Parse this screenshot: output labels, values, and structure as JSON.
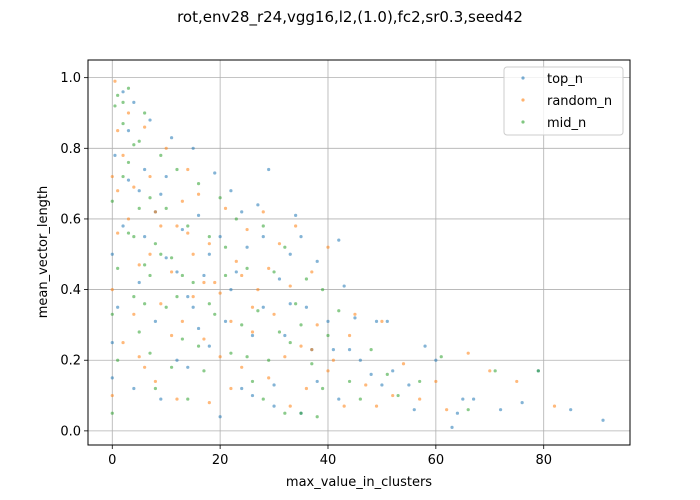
{
  "chart_data": {
    "type": "scatter",
    "title": "rot,env28_r24,vgg16,l2,(1.0),fc2,sr0.3,seed42",
    "xlabel": "max_value_in_clusters",
    "ylabel": "mean_vector_length",
    "xlim": [
      -4.5,
      96
    ],
    "ylim": [
      -0.04,
      1.05
    ],
    "xticks": [
      0,
      20,
      40,
      60,
      80
    ],
    "yticks": [
      0.0,
      0.2,
      0.4,
      0.6,
      0.8,
      1.0
    ],
    "xtick_labels": [
      "0",
      "20",
      "40",
      "60",
      "80"
    ],
    "ytick_labels": [
      "0.0",
      "0.2",
      "0.4",
      "0.6",
      "0.8",
      "1.0"
    ],
    "grid": true,
    "legend_position": "top-right",
    "series": [
      {
        "name": "top_n",
        "color": "#1f77b4",
        "points": [
          [
            91,
            0.03
          ],
          [
            85,
            0.06
          ],
          [
            79,
            0.17
          ],
          [
            76,
            0.08
          ],
          [
            72,
            0.06
          ],
          [
            67,
            0.09
          ],
          [
            65,
            0.09
          ],
          [
            64,
            0.05
          ],
          [
            63,
            0.01
          ],
          [
            60,
            0.2
          ],
          [
            58,
            0.24
          ],
          [
            56,
            0.06
          ],
          [
            55,
            0.13
          ],
          [
            52,
            0.17
          ],
          [
            51,
            0.31
          ],
          [
            50,
            0.13
          ],
          [
            49,
            0.31
          ],
          [
            48,
            0.16
          ],
          [
            45,
            0.32
          ],
          [
            44,
            0.23
          ],
          [
            43,
            0.41
          ],
          [
            42,
            0.54
          ],
          [
            41,
            0.23
          ],
          [
            40,
            0.31
          ],
          [
            38,
            0.48
          ],
          [
            37,
            0.23
          ],
          [
            36,
            0.35
          ],
          [
            35,
            0.55
          ],
          [
            34,
            0.61
          ],
          [
            33,
            0.5
          ],
          [
            32,
            0.27
          ],
          [
            31,
            0.43
          ],
          [
            30,
            0.13
          ],
          [
            29,
            0.74
          ],
          [
            28,
            0.35
          ],
          [
            27,
            0.64
          ],
          [
            26,
            0.27
          ],
          [
            25,
            0.52
          ],
          [
            24,
            0.12
          ],
          [
            23,
            0.45
          ],
          [
            22,
            0.68
          ],
          [
            21,
            0.31
          ],
          [
            20,
            0.55
          ],
          [
            19,
            0.73
          ],
          [
            18,
            0.24
          ],
          [
            17,
            0.44
          ],
          [
            16,
            0.61
          ],
          [
            15,
            0.8
          ],
          [
            14,
            0.38
          ],
          [
            13,
            0.57
          ],
          [
            12,
            0.2
          ],
          [
            11,
            0.83
          ],
          [
            10,
            0.49
          ],
          [
            9,
            0.67
          ],
          [
            8,
            0.31
          ],
          [
            7,
            0.88
          ],
          [
            6,
            0.55
          ],
          [
            5,
            0.42
          ],
          [
            4,
            0.93
          ],
          [
            3,
            0.71
          ],
          [
            2,
            0.58
          ],
          [
            1,
            0.35
          ],
          [
            0.5,
            0.78
          ],
          [
            0,
            0.5
          ],
          [
            0,
            0.25
          ],
          [
            0,
            0.15
          ],
          [
            12,
            0.45
          ],
          [
            15,
            0.35
          ],
          [
            18,
            0.5
          ],
          [
            22,
            0.4
          ],
          [
            26,
            0.1
          ],
          [
            30,
            0.07
          ],
          [
            35,
            0.05
          ],
          [
            42,
            0.09
          ],
          [
            46,
            0.2
          ],
          [
            8,
            0.62
          ],
          [
            6,
            0.74
          ],
          [
            3,
            0.85
          ],
          [
            10,
            0.72
          ],
          [
            14,
            0.18
          ],
          [
            20,
            0.04
          ],
          [
            24,
            0.62
          ],
          [
            28,
            0.55
          ],
          [
            33,
            0.36
          ],
          [
            38,
            0.14
          ],
          [
            2,
            0.96
          ],
          [
            4,
            0.12
          ],
          [
            5,
            0.68
          ],
          [
            9,
            0.09
          ],
          [
            16,
            0.29
          ]
        ]
      },
      {
        "name": "random_n",
        "color": "#ff7f0e",
        "points": [
          [
            82,
            0.07
          ],
          [
            75,
            0.14
          ],
          [
            70,
            0.17
          ],
          [
            66,
            0.22
          ],
          [
            62,
            0.06
          ],
          [
            60,
            0.14
          ],
          [
            57,
            0.09
          ],
          [
            54,
            0.19
          ],
          [
            52,
            0.1
          ],
          [
            50,
            0.31
          ],
          [
            47,
            0.13
          ],
          [
            45,
            0.33
          ],
          [
            43,
            0.07
          ],
          [
            41,
            0.2
          ],
          [
            40,
            0.52
          ],
          [
            38,
            0.3
          ],
          [
            37,
            0.45
          ],
          [
            36,
            0.12
          ],
          [
            35,
            0.24
          ],
          [
            34,
            0.58
          ],
          [
            33,
            0.41
          ],
          [
            32,
            0.21
          ],
          [
            31,
            0.53
          ],
          [
            30,
            0.33
          ],
          [
            29,
            0.15
          ],
          [
            28,
            0.62
          ],
          [
            27,
            0.4
          ],
          [
            26,
            0.28
          ],
          [
            25,
            0.57
          ],
          [
            24,
            0.18
          ],
          [
            23,
            0.48
          ],
          [
            22,
            0.31
          ],
          [
            21,
            0.63
          ],
          [
            20,
            0.21
          ],
          [
            19,
            0.42
          ],
          [
            18,
            0.53
          ],
          [
            17,
            0.26
          ],
          [
            16,
            0.67
          ],
          [
            15,
            0.38
          ],
          [
            14,
            0.74
          ],
          [
            13,
            0.31
          ],
          [
            12,
            0.58
          ],
          [
            11,
            0.45
          ],
          [
            10,
            0.8
          ],
          [
            9,
            0.36
          ],
          [
            8,
            0.62
          ],
          [
            7,
            0.5
          ],
          [
            6,
            0.86
          ],
          [
            5,
            0.47
          ],
          [
            4,
            0.69
          ],
          [
            3,
            0.9
          ],
          [
            2,
            0.25
          ],
          [
            1,
            0.56
          ],
          [
            0.5,
            0.99
          ],
          [
            1,
            0.85
          ],
          [
            0,
            0.72
          ],
          [
            0,
            0.4
          ],
          [
            0,
            0.1
          ],
          [
            2,
            0.78
          ],
          [
            4,
            0.33
          ],
          [
            6,
            0.18
          ],
          [
            9,
            0.58
          ],
          [
            12,
            0.09
          ],
          [
            15,
            0.5
          ],
          [
            18,
            0.08
          ],
          [
            22,
            0.12
          ],
          [
            26,
            0.35
          ],
          [
            29,
            0.46
          ],
          [
            33,
            0.07
          ],
          [
            37,
            0.23
          ],
          [
            40,
            0.17
          ],
          [
            44,
            0.27
          ],
          [
            49,
            0.07
          ],
          [
            3,
            0.6
          ],
          [
            7,
            0.72
          ],
          [
            11,
            0.27
          ],
          [
            14,
            0.56
          ],
          [
            17,
            0.42
          ],
          [
            20,
            0.39
          ],
          [
            24,
            0.44
          ],
          [
            1,
            0.68
          ],
          [
            5,
            0.21
          ],
          [
            8,
            0.14
          ],
          [
            13,
            0.65
          ]
        ]
      },
      {
        "name": "mid_n",
        "color": "#2ca02c",
        "points": [
          [
            79,
            0.17
          ],
          [
            71,
            0.17
          ],
          [
            66,
            0.06
          ],
          [
            61,
            0.21
          ],
          [
            57,
            0.14
          ],
          [
            53,
            0.1
          ],
          [
            51,
            0.16
          ],
          [
            48,
            0.23
          ],
          [
            46,
            0.09
          ],
          [
            44,
            0.14
          ],
          [
            42,
            0.34
          ],
          [
            40,
            0.27
          ],
          [
            39,
            0.12
          ],
          [
            38,
            0.04
          ],
          [
            37,
            0.19
          ],
          [
            36,
            0.43
          ],
          [
            35,
            0.05
          ],
          [
            34,
            0.36
          ],
          [
            33,
            0.25
          ],
          [
            32,
            0.52
          ],
          [
            31,
            0.28
          ],
          [
            30,
            0.45
          ],
          [
            29,
            0.2
          ],
          [
            28,
            0.58
          ],
          [
            27,
            0.34
          ],
          [
            26,
            0.14
          ],
          [
            25,
            0.46
          ],
          [
            24,
            0.3
          ],
          [
            23,
            0.6
          ],
          [
            22,
            0.22
          ],
          [
            21,
            0.44
          ],
          [
            20,
            0.66
          ],
          [
            19,
            0.33
          ],
          [
            18,
            0.55
          ],
          [
            17,
            0.17
          ],
          [
            16,
            0.7
          ],
          [
            15,
            0.42
          ],
          [
            14,
            0.58
          ],
          [
            13,
            0.26
          ],
          [
            12,
            0.74
          ],
          [
            11,
            0.49
          ],
          [
            10,
            0.35
          ],
          [
            9,
            0.78
          ],
          [
            8,
            0.53
          ],
          [
            7,
            0.22
          ],
          [
            6,
            0.9
          ],
          [
            5,
            0.63
          ],
          [
            4,
            0.38
          ],
          [
            3,
            0.97
          ],
          [
            2,
            0.72
          ],
          [
            1,
            0.46
          ],
          [
            0.5,
            0.92
          ],
          [
            0,
            0.65
          ],
          [
            0,
            0.33
          ],
          [
            0,
            0.05
          ],
          [
            1,
            0.2
          ],
          [
            2,
            0.87
          ],
          [
            3,
            0.56
          ],
          [
            4,
            0.81
          ],
          [
            5,
            0.28
          ],
          [
            6,
            0.47
          ],
          [
            7,
            0.66
          ],
          [
            8,
            0.12
          ],
          [
            9,
            0.5
          ],
          [
            10,
            0.63
          ],
          [
            11,
            0.18
          ],
          [
            12,
            0.38
          ],
          [
            13,
            0.44
          ],
          [
            14,
            0.09
          ],
          [
            16,
            0.24
          ],
          [
            18,
            0.36
          ],
          [
            21,
            0.52
          ],
          [
            25,
            0.21
          ],
          [
            28,
            0.09
          ],
          [
            32,
            0.05
          ],
          [
            35,
            0.3
          ],
          [
            39,
            0.4
          ],
          [
            1,
            0.95
          ],
          [
            2,
            0.93
          ],
          [
            3,
            0.76
          ],
          [
            4,
            0.55
          ],
          [
            5,
            0.82
          ],
          [
            6,
            0.36
          ],
          [
            7,
            0.44
          ]
        ]
      }
    ]
  }
}
